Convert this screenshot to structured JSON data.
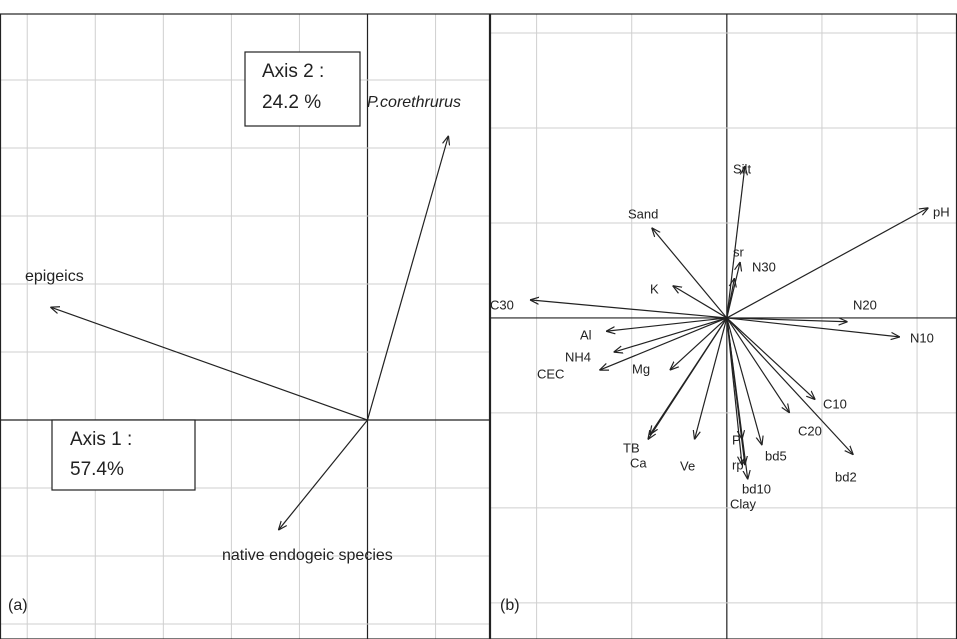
{
  "chart_data": [
    {
      "type": "biplot",
      "panel_label": "(a)",
      "grid": true,
      "xlim": [
        -5.4,
        1.8
      ],
      "ylim": [
        -3.22,
        5.97
      ],
      "xticks": [
        -5,
        -4,
        -3,
        -2,
        -1,
        0,
        1
      ],
      "yticks": [
        -3,
        -2,
        -1,
        0,
        1,
        2,
        3,
        4,
        5
      ],
      "annotations": [
        [
          "Axis 2 :",
          "24.2 %"
        ],
        [
          "Axis 1 :",
          "57.4%"
        ]
      ],
      "arrows": [
        {
          "name": "P.corethrurus",
          "x": 1.19,
          "y": 4.18,
          "italic": true
        },
        {
          "name": "epigeics",
          "x": -4.66,
          "y": 1.66
        },
        {
          "name": "native endogeic species",
          "x": -1.31,
          "y": -1.62
        }
      ]
    },
    {
      "type": "biplot",
      "panel_label": "(b)",
      "grid": true,
      "xlim": [
        -2.49,
        2.42
      ],
      "ylim": [
        -3.38,
        3.2
      ],
      "xticks": [
        -2,
        -1,
        0,
        1,
        2
      ],
      "yticks": [
        -3,
        -2,
        -1,
        0,
        1,
        2,
        3
      ],
      "arrows": [
        {
          "name": "pH",
          "x": 2.12,
          "y": 1.16
        },
        {
          "name": "Silt",
          "x": 0.19,
          "y": 1.6
        },
        {
          "name": "Sand",
          "x": -0.79,
          "y": 0.95
        },
        {
          "name": "sr",
          "x": 0.14,
          "y": 0.59
        },
        {
          "name": "N30",
          "x": 0.08,
          "y": 0.42
        },
        {
          "name": "K",
          "x": -0.57,
          "y": 0.34
        },
        {
          "name": "C30",
          "x": -2.07,
          "y": 0.19
        },
        {
          "name": "N20",
          "x": 1.27,
          "y": -0.04
        },
        {
          "name": "N10",
          "x": 1.82,
          "y": -0.2
        },
        {
          "name": "Al",
          "x": -1.27,
          "y": -0.14
        },
        {
          "name": "NH4",
          "x": -1.19,
          "y": -0.36
        },
        {
          "name": "CEC",
          "x": -1.34,
          "y": -0.55
        },
        {
          "name": "Mg",
          "x": -0.6,
          "y": -0.55
        },
        {
          "name": "TB",
          "x": -0.83,
          "y": -1.28
        },
        {
          "name": "Ca",
          "x": -0.81,
          "y": -1.23
        },
        {
          "name": "Ve",
          "x": -0.34,
          "y": -1.28
        },
        {
          "name": "P",
          "x": 0.16,
          "y": -1.28
        },
        {
          "name": "rp",
          "x": 0.19,
          "y": -1.55
        },
        {
          "name": "bd10",
          "x": 0.22,
          "y": -1.7
        },
        {
          "name": "Clay",
          "x": 0.16,
          "y": -1.55
        },
        {
          "name": "bd5",
          "x": 0.37,
          "y": -1.34
        },
        {
          "name": "C20",
          "x": 0.66,
          "y": -1.0
        },
        {
          "name": "C10",
          "x": 0.93,
          "y": -0.86
        },
        {
          "name": "bd2",
          "x": 1.33,
          "y": -1.44
        }
      ]
    }
  ]
}
